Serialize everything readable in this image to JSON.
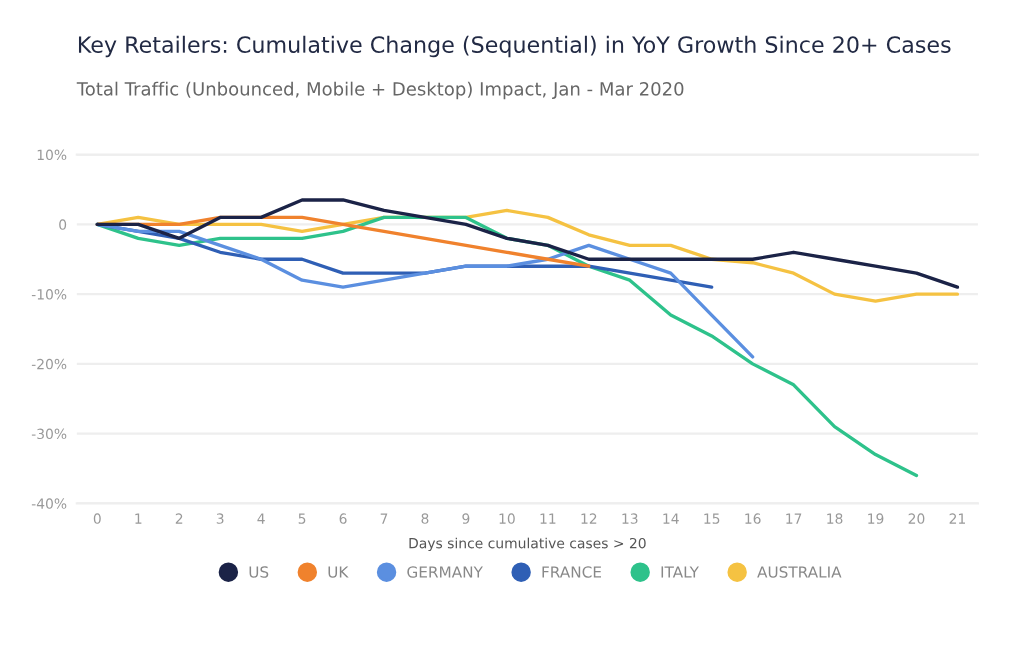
{
  "chart_data": {
    "type": "line",
    "title": "Key Retailers: Cumulative Change (Sequential) in YoY Growth Since 20+ Cases",
    "subtitle": "Total Traffic (Unbounced, Mobile + Desktop) Impact, Jan - Mar 2020",
    "xlabel": "Days since cumulative cases > 20",
    "xlim": [
      -0.5,
      21.5
    ],
    "xticks": [
      0,
      1,
      2,
      3,
      4,
      5,
      6,
      7,
      8,
      9,
      10,
      11,
      12,
      13,
      14,
      15,
      16,
      17,
      18,
      19,
      20,
      21
    ],
    "ylim": [
      -40,
      10
    ],
    "yticks": [
      {
        "value": 10,
        "label": "10%"
      },
      0,
      {
        "value": -10,
        "label": "-10%"
      },
      {
        "value": -20,
        "label": "-20%"
      },
      {
        "value": -30,
        "label": "-30%"
      },
      {
        "value": -40,
        "label": "-40%"
      }
    ],
    "grid": "y",
    "legend": "bottom",
    "series": [
      {
        "name": "US",
        "color": "#1b2347",
        "x": [
          0,
          1,
          2,
          3,
          4,
          5,
          6,
          7,
          8,
          9,
          10,
          11,
          12,
          13,
          14,
          15,
          16,
          17,
          18,
          19,
          20,
          21
        ],
        "values": [
          0,
          0,
          -2,
          1,
          1,
          3.5,
          3.5,
          2,
          1,
          0,
          -2,
          -3,
          -5,
          -5,
          -5,
          -5,
          -5,
          -4,
          -5,
          -6,
          -7,
          -9
        ]
      },
      {
        "name": "UK",
        "color": "#f0822d",
        "x": [
          0,
          1,
          2,
          3,
          4,
          5,
          6,
          7,
          8,
          9,
          10,
          11,
          12
        ],
        "values": [
          0,
          0,
          0,
          1,
          1,
          1,
          0,
          -1,
          -2,
          -3,
          -4,
          -5,
          -6
        ]
      },
      {
        "name": "GERMANY",
        "color": "#5b8fe0",
        "x": [
          0,
          1,
          2,
          3,
          4,
          5,
          6,
          7,
          8,
          9,
          10,
          11,
          12,
          13,
          14,
          15,
          16
        ],
        "values": [
          0,
          -1,
          -1,
          -3,
          -5,
          -8,
          -9,
          -8,
          -7,
          -6,
          -6,
          -5,
          -3,
          -5,
          -7,
          -13,
          -19
        ]
      },
      {
        "name": "FRANCE",
        "color": "#2f5fb5",
        "x": [
          0,
          1,
          2,
          3,
          4,
          5,
          6,
          7,
          8,
          9,
          10,
          11,
          12,
          13,
          14,
          15
        ],
        "values": [
          0,
          -1,
          -2,
          -4,
          -5,
          -5,
          -7,
          -7,
          -7,
          -6,
          -6,
          -6,
          -6,
          -7,
          -8,
          -9
        ]
      },
      {
        "name": "ITALY",
        "color": "#2ec28b",
        "x": [
          0,
          1,
          2,
          3,
          4,
          5,
          6,
          7,
          8,
          9,
          10,
          11,
          12,
          13,
          14,
          15,
          16,
          17,
          18,
          19,
          20
        ],
        "values": [
          0,
          -2,
          -3,
          -2,
          -2,
          -2,
          -1,
          1,
          1,
          1,
          -2,
          -3,
          -6,
          -8,
          -13,
          -16,
          -20,
          -23,
          -29,
          -33,
          -36
        ]
      },
      {
        "name": "AUSTRALIA",
        "color": "#f5c242",
        "x": [
          0,
          1,
          2,
          3,
          4,
          5,
          6,
          7,
          8,
          9,
          10,
          11,
          12,
          13,
          14,
          15,
          16,
          17,
          18,
          19,
          20,
          21
        ],
        "values": [
          0,
          1,
          0,
          0,
          0,
          -1,
          0,
          1,
          1,
          1,
          2,
          1,
          -1.5,
          -3,
          -3,
          -5,
          -5.5,
          -7,
          -10,
          -11,
          -10,
          -10
        ]
      }
    ]
  }
}
